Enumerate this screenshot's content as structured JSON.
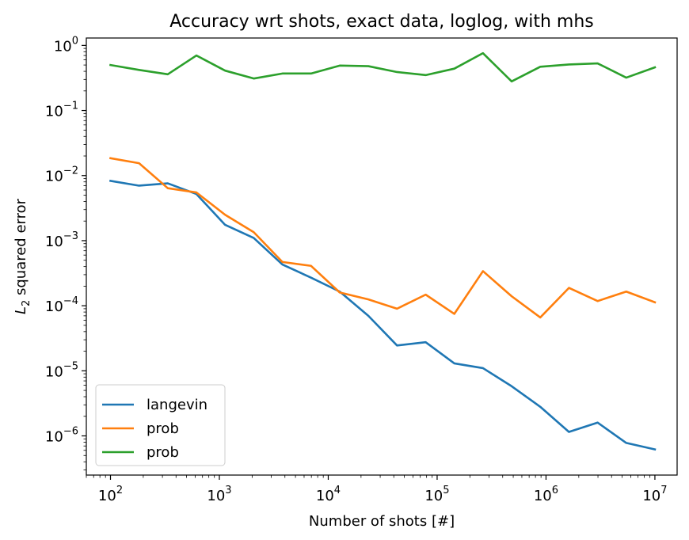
{
  "chart_data": {
    "type": "line",
    "title": "Accuracy wrt shots, exact data, loglog, with mhs",
    "xlabel": "Number of shots [#]",
    "ylabel": "L2 squared error",
    "ylabel_main": "L",
    "ylabel_sub": "2",
    "ylabel_rest": " squared error",
    "xscale": "log",
    "yscale": "log",
    "xlim": [
      60,
      16000000
    ],
    "ylim": [
      2.5e-07,
      1.3
    ],
    "grid": false,
    "legend_position": "lower-left",
    "x_ticks": [
      {
        "base": "10",
        "exp": "2",
        "value": 100
      },
      {
        "base": "10",
        "exp": "3",
        "value": 1000
      },
      {
        "base": "10",
        "exp": "4",
        "value": 10000
      },
      {
        "base": "10",
        "exp": "5",
        "value": 100000
      },
      {
        "base": "10",
        "exp": "6",
        "value": 1000000
      },
      {
        "base": "10",
        "exp": "7",
        "value": 10000000
      }
    ],
    "y_ticks": [
      {
        "base": "10",
        "exp": "0",
        "value": 1
      },
      {
        "base": "10",
        "exp": "−1",
        "value": 0.1
      },
      {
        "base": "10",
        "exp": "−2",
        "value": 0.01
      },
      {
        "base": "10",
        "exp": "−3",
        "value": 0.001
      },
      {
        "base": "10",
        "exp": "−4",
        "value": 0.0001
      },
      {
        "base": "10",
        "exp": "−5",
        "value": 1e-05
      },
      {
        "base": "10",
        "exp": "−6",
        "value": 1e-06
      }
    ],
    "x": [
      100,
      183,
      336,
      616,
      1129,
      2069,
      3793,
      6952,
      12743,
      23357,
      42813,
      78476,
      143845,
      263665,
      483293,
      885867,
      1623777,
      2976351,
      5455595,
      10000000
    ],
    "series": [
      {
        "name": "langevin",
        "color": "#1f77b4",
        "values": [
          0.0083,
          0.007,
          0.0076,
          0.0052,
          0.00175,
          0.0011,
          0.00043,
          0.00027,
          0.000165,
          7e-05,
          2.45e-05,
          2.75e-05,
          1.3e-05,
          1.1e-05,
          5.8e-06,
          2.8e-06,
          1.15e-06,
          1.6e-06,
          7.8e-07,
          6.2e-07
        ]
      },
      {
        "name": "prob",
        "color": "#ff7f0e",
        "values": [
          0.0185,
          0.0155,
          0.0064,
          0.0055,
          0.0025,
          0.00135,
          0.00047,
          0.00041,
          0.00016,
          0.000125,
          9e-05,
          0.000148,
          7.5e-05,
          0.00034,
          0.00014,
          6.6e-05,
          0.000188,
          0.000118,
          0.000165,
          0.000113
        ]
      },
      {
        "name": "prob",
        "color": "#2ca02c",
        "values": [
          0.5,
          0.42,
          0.36,
          0.7,
          0.41,
          0.31,
          0.37,
          0.37,
          0.49,
          0.48,
          0.39,
          0.35,
          0.44,
          0.76,
          0.28,
          0.47,
          0.51,
          0.53,
          0.32,
          0.46
        ]
      }
    ]
  }
}
